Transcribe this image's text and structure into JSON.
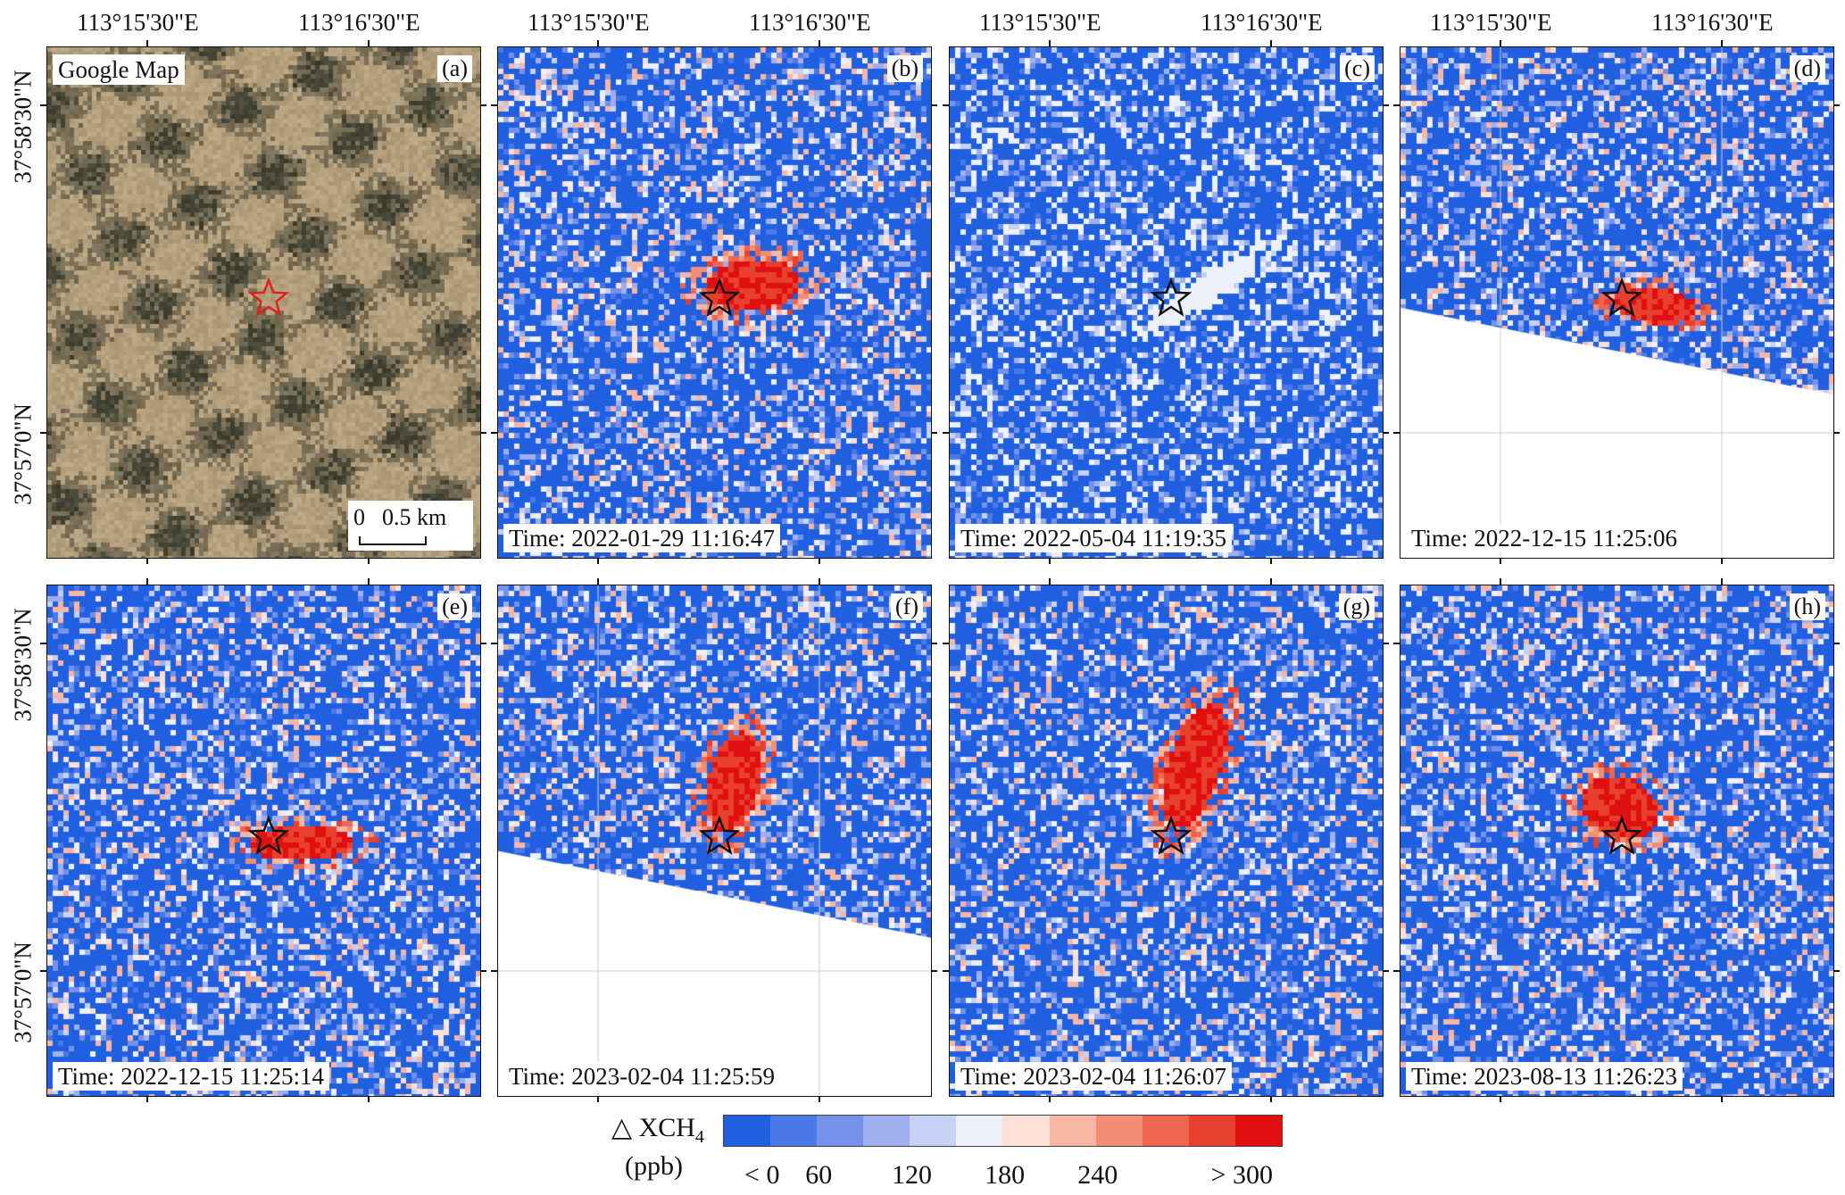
{
  "top_axis": {
    "lon_labels": [
      "113°15'30\"E",
      "113°16'30\"E"
    ]
  },
  "left_axis": {
    "lat_labels": [
      "37°58'30\"N",
      "37°57'0\"N"
    ]
  },
  "panels": [
    {
      "letter": "(a)",
      "kind": "satellite",
      "title": "Google Map",
      "scale_zero": "0",
      "scale_text": "0.5 km",
      "star_color": "#e02020"
    },
    {
      "letter": "(b)",
      "kind": "xch4",
      "time": "Time: 2022-01-29 11:16:47"
    },
    {
      "letter": "(c)",
      "kind": "xch4",
      "time": "Time: 2022-05-04 11:19:35"
    },
    {
      "letter": "(d)",
      "kind": "xch4",
      "time": "Time: 2022-12-15 11:25:06"
    },
    {
      "letter": "(e)",
      "kind": "xch4",
      "time": "Time: 2022-12-15 11:25:14"
    },
    {
      "letter": "(f)",
      "kind": "xch4",
      "time": "Time: 2023-02-04 11:25:59"
    },
    {
      "letter": "(g)",
      "kind": "xch4",
      "time": "Time: 2023-02-04 11:26:07"
    },
    {
      "letter": "(h)",
      "kind": "xch4",
      "time": "Time: 2023-08-13 11:26:23"
    }
  ],
  "colorbar": {
    "title": "△ XCH",
    "title_sub": "4",
    "unit": "(ppb)",
    "tick_labels": [
      "< 0",
      "60",
      "120",
      "180",
      "240",
      "> 300"
    ],
    "colors": [
      "#1f5fe0",
      "#4a78e6",
      "#7592ea",
      "#a0b0ef",
      "#c8d2f6",
      "#eef0fb",
      "#fde0d6",
      "#f8b6a4",
      "#f38d74",
      "#ee6550",
      "#e8402f",
      "#e01010"
    ]
  }
}
